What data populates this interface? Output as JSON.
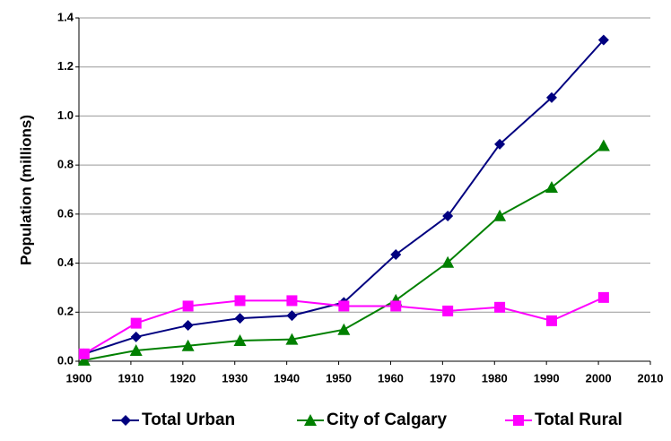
{
  "chart_data": {
    "type": "line",
    "y_label": "Population (millions)",
    "xlim": [
      1900,
      2010
    ],
    "xticks": [
      1900,
      1910,
      1920,
      1930,
      1940,
      1950,
      1960,
      1970,
      1980,
      1990,
      2000,
      2010
    ],
    "ylim": [
      0,
      1.4
    ],
    "yticks": [
      {
        "value": 0,
        "label": "0.0"
      },
      {
        "value": 0.2,
        "label": "0.2"
      },
      {
        "value": 0.4,
        "label": "0.4"
      },
      {
        "value": 0.6,
        "label": "0.6"
      },
      {
        "value": 0.8,
        "label": "0.8"
      },
      {
        "value": 1.0,
        "label": "1.0"
      },
      {
        "value": 1.2,
        "label": "1.2"
      },
      {
        "value": 1.4,
        "label": "1.4"
      }
    ],
    "grid": true,
    "legend": "bottom",
    "x": [
      1901,
      1911,
      1921,
      1931,
      1941,
      1951,
      1961,
      1971,
      1981,
      1991,
      2001
    ],
    "series": [
      {
        "name": "Total Urban",
        "color": "#000080",
        "marker": "diamond",
        "values": [
          0.03,
          0.099,
          0.146,
          0.175,
          0.186,
          0.24,
          0.435,
          0.592,
          0.885,
          1.075,
          1.31
        ]
      },
      {
        "name": "City of Calgary",
        "color": "#008000",
        "marker": "triangle",
        "values": [
          0.004,
          0.044,
          0.063,
          0.084,
          0.089,
          0.129,
          0.249,
          0.403,
          0.593,
          0.709,
          0.879
        ]
      },
      {
        "name": "Total Rural",
        "color": "#FF00FF",
        "marker": "square",
        "values": [
          0.03,
          0.155,
          0.225,
          0.247,
          0.247,
          0.225,
          0.225,
          0.205,
          0.22,
          0.165,
          0.26
        ]
      }
    ]
  }
}
